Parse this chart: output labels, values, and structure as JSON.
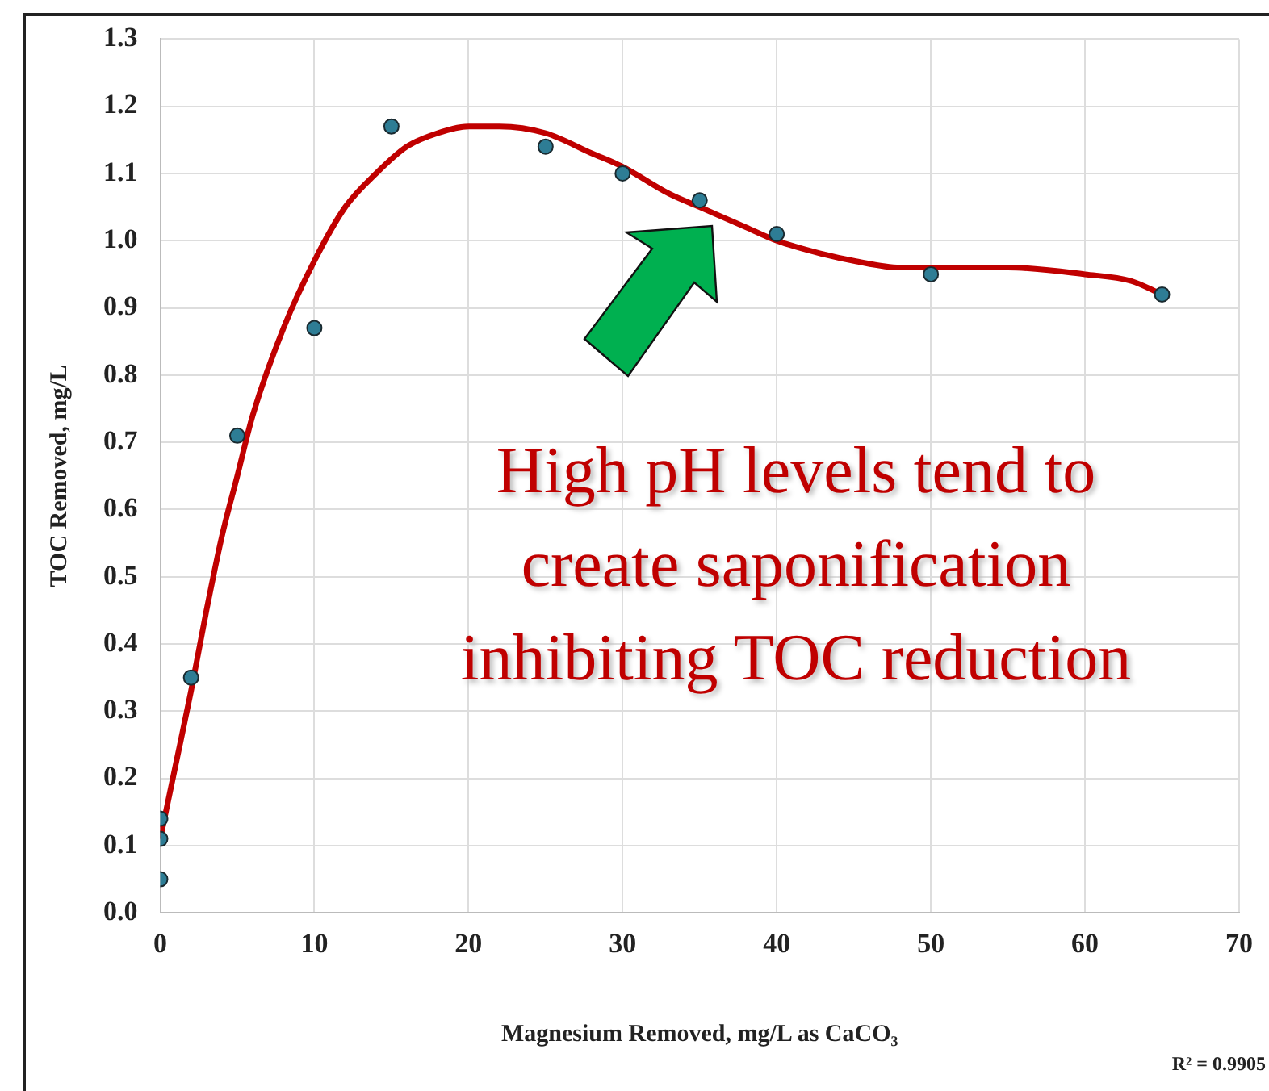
{
  "chart_data": {
    "type": "scatter",
    "xlabel": "Magnesium Removed, mg/L as CaCO₃",
    "ylabel": "TOC Removed, mg/L",
    "series": [
      {
        "color": "#2e7d95",
        "x": [
          0,
          0,
          0,
          2,
          5,
          10,
          15,
          25,
          30,
          35,
          40,
          50,
          65
        ],
        "values": [
          0.05,
          0.11,
          0.14,
          0.35,
          0.71,
          0.87,
          1.17,
          1.14,
          1.1,
          1.06,
          1.01,
          0.95,
          0.92
        ]
      },
      {
        "type": "line",
        "color": "#c00000",
        "marker": "none",
        "x": [
          0,
          1,
          2,
          3,
          4,
          5,
          6,
          8,
          10,
          12,
          14,
          16,
          18,
          20,
          22,
          25,
          28,
          30,
          33,
          35,
          38,
          40,
          43,
          45,
          48,
          50,
          55,
          60,
          63,
          65
        ],
        "values": [
          0.11,
          0.22,
          0.33,
          0.45,
          0.56,
          0.65,
          0.74,
          0.87,
          0.97,
          1.05,
          1.1,
          1.14,
          1.16,
          1.17,
          1.17,
          1.16,
          1.13,
          1.11,
          1.07,
          1.05,
          1.02,
          1.0,
          0.98,
          0.97,
          0.96,
          0.96,
          0.96,
          0.95,
          0.94,
          0.92
        ]
      }
    ],
    "xlim": [
      0,
      70
    ],
    "xticks": [
      0,
      10,
      20,
      30,
      40,
      50,
      60,
      70
    ],
    "ylim": [
      0,
      1.3
    ],
    "yticks": [
      {
        "value": 0,
        "label": "0.0"
      },
      {
        "value": 0.1,
        "label": "0.1"
      },
      {
        "value": 0.2,
        "label": "0.2"
      },
      {
        "value": 0.3,
        "label": "0.3"
      },
      {
        "value": 0.4,
        "label": "0.4"
      },
      {
        "value": 0.5,
        "label": "0.5"
      },
      {
        "value": 0.6,
        "label": "0.6"
      },
      {
        "value": 0.7,
        "label": "0.7"
      },
      {
        "value": 0.8,
        "label": "0.8"
      },
      {
        "value": 0.9,
        "label": "0.9"
      },
      {
        "value": 1,
        "label": "1.0"
      },
      {
        "value": 1.1,
        "label": "1.1"
      },
      {
        "value": 1.2,
        "label": "1.2"
      },
      {
        "value": 1.3,
        "label": "1.3"
      }
    ],
    "grid": true,
    "marker": "circle",
    "legend": false,
    "annotations": [
      "High pH levels tend to create saponification inhibiting TOC reduction",
      "R² = 0.9905"
    ]
  }
}
